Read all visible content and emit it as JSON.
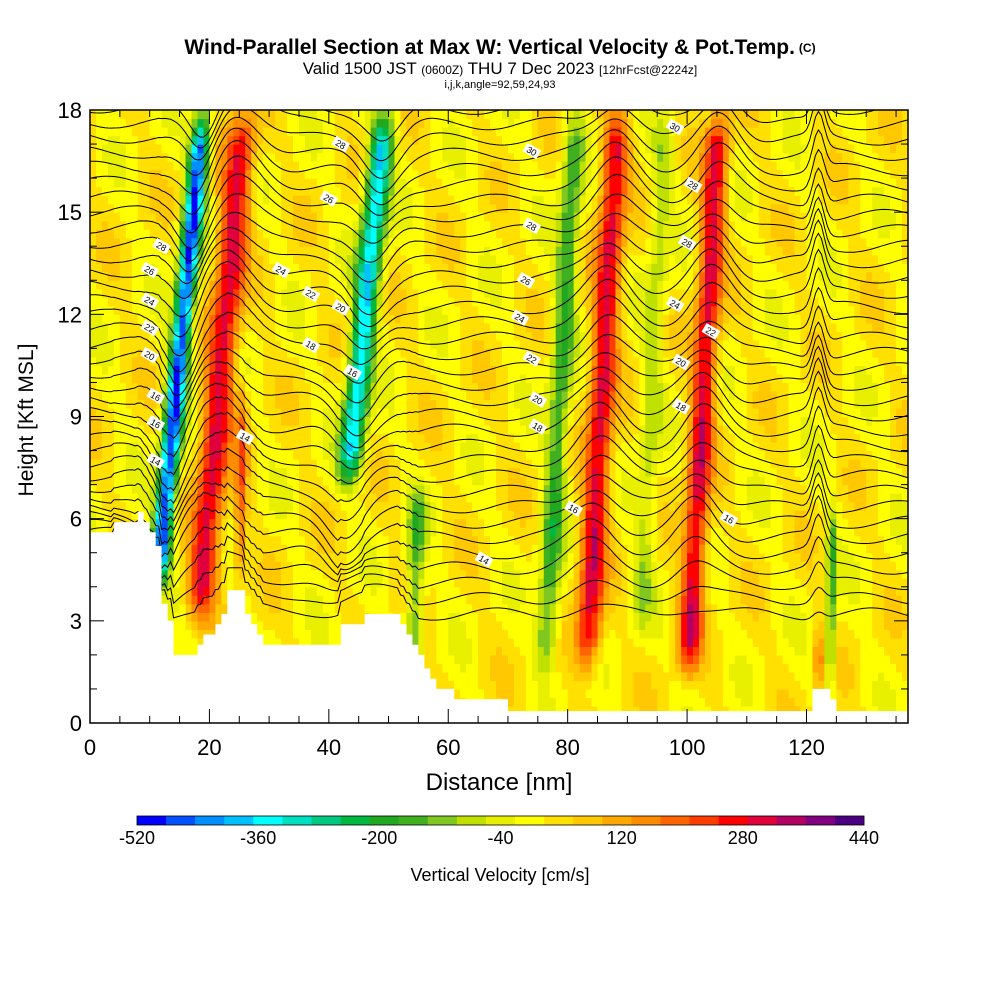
{
  "title": {
    "main": "Wind-Parallel Section at Max W: Vertical Velocity & Pot.Temp.",
    "copyright": "(C)",
    "line2_a": "Valid 1500 JST",
    "line2_b": "(0600Z)",
    "line2_c": "THU 7 Dec 2023",
    "line2_d": "[12hrFcst@2224z]",
    "line3": "i,j,k,angle=92,59,24,93"
  },
  "chart_data": {
    "type": "heatmap",
    "xlabel": "Distance [nm]",
    "ylabel": "Height [Kft MSL]",
    "xlim": [
      0,
      137
    ],
    "ylim": [
      0,
      18
    ],
    "xticks": [
      "0",
      "20",
      "40",
      "60",
      "80",
      "100",
      "120"
    ],
    "yticks": [
      "0",
      "3",
      "6",
      "9",
      "12",
      "15",
      "18"
    ],
    "xtick_values": [
      0,
      20,
      40,
      60,
      80,
      100,
      120
    ],
    "ytick_values": [
      0,
      3,
      6,
      9,
      12,
      15,
      18
    ],
    "colorbar": {
      "label": "Vertical Velocity [cm/s]",
      "tick_labels": [
        "-520",
        "-360",
        "-200",
        "-40",
        "120",
        "280",
        "440"
      ],
      "tick_values": [
        -520,
        -360,
        -200,
        -40,
        120,
        280,
        440
      ],
      "levels": [
        -520,
        -480,
        -440,
        -400,
        -360,
        -320,
        -280,
        -240,
        -200,
        -160,
        -120,
        -80,
        -40,
        0,
        40,
        80,
        120,
        160,
        200,
        240,
        280,
        320,
        360,
        400,
        440
      ],
      "colors": [
        "#0000ff",
        "#0050ff",
        "#0090ff",
        "#00c0ff",
        "#00ffff",
        "#00e0c0",
        "#00c880",
        "#00b840",
        "#20a820",
        "#40b020",
        "#80c820",
        "#c0e000",
        "#e8f000",
        "#ffff00",
        "#ffe000",
        "#ffc800",
        "#ffa800",
        "#ff8c00",
        "#ff6400",
        "#ff3c00",
        "#ff0000",
        "#e0003c",
        "#b00064",
        "#800080",
        "#4b0082"
      ]
    },
    "velocity_bands": [
      {
        "x": 11,
        "tilt": 0.55,
        "top": 18,
        "bottom": 3.5,
        "amplitude": -520,
        "width": 1.6
      },
      {
        "x": 18,
        "tilt": 0.5,
        "top": 18,
        "bottom": 2.5,
        "amplitude": 300,
        "width": 2.5
      },
      {
        "x": 25,
        "tilt": 0.1,
        "top": 10,
        "bottom": 3.5,
        "amplitude": 160,
        "width": 1.0
      },
      {
        "x": 43,
        "tilt": 0.55,
        "top": 18,
        "bottom": 6.5,
        "amplitude": -400,
        "width": 2.0
      },
      {
        "x": 54,
        "tilt": 0.15,
        "top": 7,
        "bottom": 1,
        "amplitude": -180,
        "width": 1.5
      },
      {
        "x": 76,
        "tilt": 0.35,
        "top": 18,
        "bottom": 1,
        "amplitude": -200,
        "width": 1.8
      },
      {
        "x": 83,
        "tilt": 0.35,
        "top": 18,
        "bottom": 1,
        "amplitude": 300,
        "width": 2.2
      },
      {
        "x": 92,
        "tilt": 0.3,
        "top": 18,
        "bottom": 2,
        "amplitude": -100,
        "width": 1.8
      },
      {
        "x": 100,
        "tilt": 0.35,
        "top": 18,
        "bottom": 1,
        "amplitude": 300,
        "width": 2.0
      },
      {
        "x": 124,
        "tilt": 0.05,
        "top": 6.5,
        "bottom": 0.4,
        "amplitude": -200,
        "width": 0.8
      },
      {
        "x": 122,
        "tilt": 0.0,
        "top": 3,
        "bottom": 0.4,
        "amplitude": 250,
        "width": 0.6
      }
    ],
    "terrain": {
      "x": [
        0,
        3,
        4,
        7,
        8,
        9,
        10,
        11,
        12,
        13,
        14,
        15,
        17,
        18,
        19,
        20,
        21,
        22,
        23,
        24,
        25,
        26,
        27,
        28,
        29,
        31,
        35,
        40,
        42,
        46,
        51,
        52,
        53,
        54,
        55,
        56,
        57,
        58,
        59,
        61,
        62,
        65,
        70,
        120,
        121,
        122,
        124,
        125,
        126,
        137
      ],
      "heights": [
        5.6,
        5.6,
        5.9,
        5.9,
        6.2,
        5.9,
        5.6,
        5.2,
        3.5,
        3.0,
        2.0,
        2.0,
        2.0,
        2.3,
        2.6,
        2.6,
        2.9,
        3.2,
        3.9,
        3.9,
        3.9,
        3.2,
        2.9,
        2.6,
        2.3,
        2.3,
        2.3,
        2.3,
        2.9,
        3.2,
        3.2,
        2.9,
        2.6,
        2.3,
        2.0,
        1.6,
        1.3,
        1.0,
        1.0,
        0.7,
        0.7,
        0.7,
        0.35,
        0.35,
        1.0,
        1.0,
        0.7,
        0.35,
        0.35,
        0.35
      ]
    },
    "theta_contours": {
      "levels_K": [
        14,
        16,
        18,
        20,
        22,
        24,
        26,
        28,
        30
      ],
      "labels": [
        {
          "text": "14",
          "x": 11,
          "y": 7.7
        },
        {
          "text": "16",
          "x": 11,
          "y": 8.8
        },
        {
          "text": "16",
          "x": 11,
          "y": 9.6
        },
        {
          "text": "20",
          "x": 10,
          "y": 10.8
        },
        {
          "text": "22",
          "x": 10,
          "y": 11.6
        },
        {
          "text": "24",
          "x": 10,
          "y": 12.4
        },
        {
          "text": "26",
          "x": 10,
          "y": 13.3
        },
        {
          "text": "28",
          "x": 12,
          "y": 14.0
        },
        {
          "text": "14",
          "x": 26,
          "y": 8.4
        },
        {
          "text": "24",
          "x": 32,
          "y": 13.3
        },
        {
          "text": "22",
          "x": 37,
          "y": 12.6
        },
        {
          "text": "18",
          "x": 37,
          "y": 11.1
        },
        {
          "text": "26",
          "x": 40,
          "y": 15.4
        },
        {
          "text": "28",
          "x": 42,
          "y": 17.0
        },
        {
          "text": "20",
          "x": 42,
          "y": 12.2
        },
        {
          "text": "16",
          "x": 44,
          "y": 10.3
        },
        {
          "text": "14",
          "x": 66,
          "y": 4.8
        },
        {
          "text": "30",
          "x": 74,
          "y": 16.8
        },
        {
          "text": "28",
          "x": 74,
          "y": 14.6
        },
        {
          "text": "26",
          "x": 73,
          "y": 13.0
        },
        {
          "text": "24",
          "x": 72,
          "y": 11.9
        },
        {
          "text": "22",
          "x": 74,
          "y": 10.7
        },
        {
          "text": "20",
          "x": 75,
          "y": 9.5
        },
        {
          "text": "18",
          "x": 75,
          "y": 8.7
        },
        {
          "text": "16",
          "x": 81,
          "y": 6.3
        },
        {
          "text": "30",
          "x": 98,
          "y": 17.5
        },
        {
          "text": "28",
          "x": 101,
          "y": 15.8
        },
        {
          "text": "28",
          "x": 100,
          "y": 14.1
        },
        {
          "text": "24",
          "x": 98,
          "y": 12.3
        },
        {
          "text": "22",
          "x": 104,
          "y": 11.5
        },
        {
          "text": "20",
          "x": 99,
          "y": 10.6
        },
        {
          "text": "18",
          "x": 99,
          "y": 9.3
        },
        {
          "text": "16",
          "x": 107,
          "y": 6.0
        }
      ]
    }
  }
}
